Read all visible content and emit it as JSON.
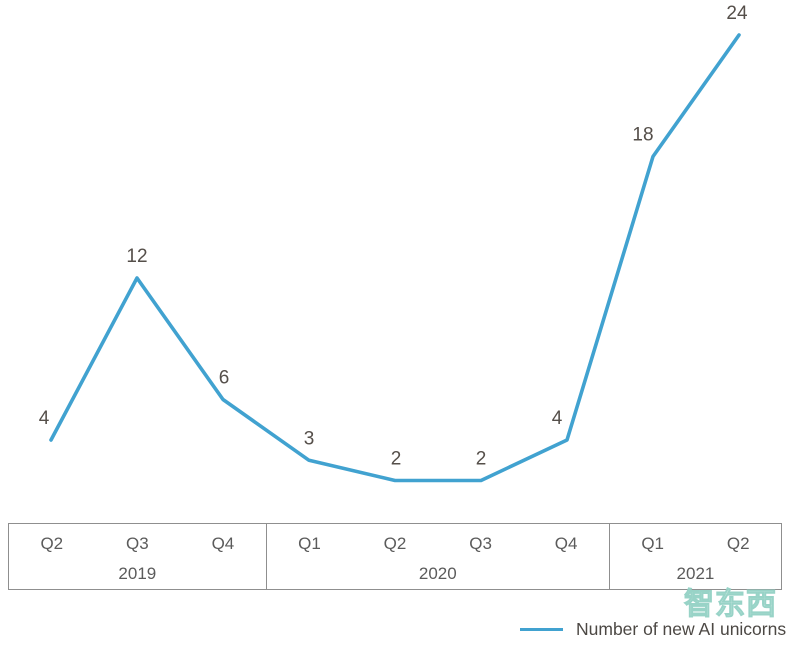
{
  "chart_data": {
    "type": "line",
    "title": "",
    "x": [
      "Q2 2019",
      "Q3 2019",
      "Q4 2019",
      "Q1 2020",
      "Q2 2020",
      "Q3 2020",
      "Q4 2020",
      "Q1 2021",
      "Q2 2021"
    ],
    "values": [
      4,
      12,
      6,
      3,
      2,
      2,
      4,
      18,
      24
    ],
    "series": [
      {
        "name": "Number of new AI unicorns",
        "values": [
          4,
          12,
          6,
          3,
          2,
          2,
          4,
          18,
          24
        ]
      }
    ],
    "axis_groups": [
      {
        "year": "2019",
        "quarters": [
          "Q2",
          "Q3",
          "Q4"
        ]
      },
      {
        "year": "2020",
        "quarters": [
          "Q1",
          "Q2",
          "Q3",
          "Q4"
        ]
      },
      {
        "year": "2021",
        "quarters": [
          "Q1",
          "Q2"
        ]
      }
    ],
    "ylim": [
      0,
      25
    ],
    "grid": false,
    "y_axis_visible": false,
    "data_labels_visible": true,
    "legend_position": "bottom-right",
    "label_dx": [
      -7,
      0,
      1,
      0,
      1,
      0,
      -10,
      -10,
      -2
    ],
    "line_color": "#41a2d0",
    "data_label_color": "#554f4a",
    "axis_text_color": "#5b5b5b",
    "border_color": "#8f8f8f"
  },
  "legend": {
    "label": "Number of new AI unicorns",
    "swatch_color": "#41a2d0"
  },
  "watermark": {
    "text": "智东西",
    "color": "#93d1c5"
  }
}
